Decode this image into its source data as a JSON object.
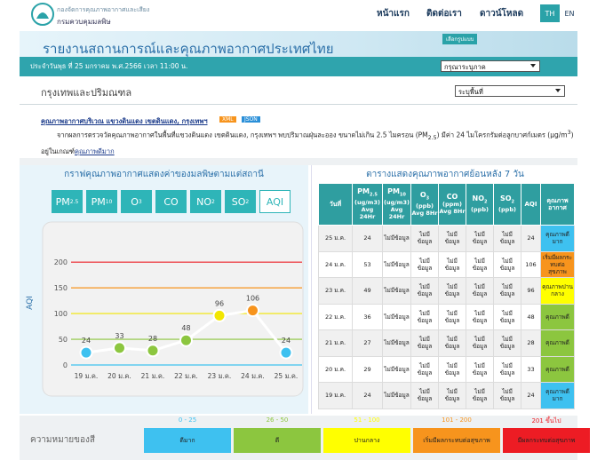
{
  "header": {
    "org_line1": "กองจัดการคุณภาพอากาศและเสียง",
    "org_line2": "กรมควบคุมมลพิษ",
    "nav": [
      "หน้าแรก",
      "ติดต่อเรา",
      "ดาวน์โหลด"
    ],
    "lang": [
      "TH",
      "EN"
    ]
  },
  "banner": {
    "title": "รายงานสถานการณ์และคุณภาพอากาศประเทศไทย",
    "select_label": "เลือกรูปแบบ",
    "select_value": "กรุณาระบุภาค",
    "date": "ประจำวันพุธ ที่ 25 มกราคม พ.ศ.2566 เวลา 11:00 น."
  },
  "region": {
    "title": "กรุงเทพและปริมณฑล",
    "select_value": "ระบุพื้นที่"
  },
  "station": {
    "title": "คุณภาพอากาศบริเวณ แขวงดินแดง เขตดินแดง, กรุงเทพฯ",
    "badges": [
      "XML",
      "JSON"
    ],
    "text_1": "จากผลการตรวจวัดคุณภาพอากาศในพื้นที่แขวงดินแดง เขตดินแดง, กรุงเทพฯ พบปริมาณฝุ่นละออง ขนาดไม่เกิน 2.5 ไมครอน (PM",
    "sub_1": "2.5",
    "text_2": ") มีค่า 24 ไมโครกรัมต่อลูกบาศก์เมตร (µg/m",
    "sup_1": "3",
    "text_3": ") อยู่ในเกณฑ์",
    "link": "คุณภาพดีมาก"
  },
  "chart_panel": {
    "title": "กราฟคุณภาพอากาศแสดงค่าของมลพิษตามแต่สถานี",
    "tabs": [
      {
        "label": "PM",
        "sub": "2.5",
        "active": false
      },
      {
        "label": "PM",
        "sub": "10",
        "active": false
      },
      {
        "label": "O",
        "sub": "3",
        "active": false
      },
      {
        "label": "CO",
        "sub": "",
        "active": false
      },
      {
        "label": "NO",
        "sub": "2",
        "active": false
      },
      {
        "label": "SO",
        "sub": "2",
        "active": false
      },
      {
        "label": "AQI",
        "sub": "",
        "active": true
      }
    ]
  },
  "chart_data": {
    "type": "line",
    "y_label": "AQI",
    "categories": [
      "19 ม.ค.",
      "20 ม.ค.",
      "21 ม.ค.",
      "22 ม.ค.",
      "23 ม.ค.",
      "24 ม.ค.",
      "25 ม.ค."
    ],
    "series": [
      {
        "color": "#ffffff",
        "values": [
          24,
          33,
          28,
          48,
          96,
          106,
          24
        ],
        "point_colors": [
          "#3ec1f0",
          "#8cc63f",
          "#8cc63f",
          "#8cc63f",
          "#f2e600",
          "#f7941d",
          "#3ec1f0"
        ]
      }
    ],
    "ylim": [
      0,
      240
    ],
    "yticks": [
      0,
      50,
      100,
      150,
      200
    ],
    "grid": true,
    "grid_colors": [
      "#3ec1f0",
      "#8cc63f",
      "#f2e600",
      "#f7941d",
      "#ed1c24"
    ]
  },
  "table": {
    "title": "ตารางแสดงคุณภาพอากาศย้อนหลัง 7 วัน",
    "headers": [
      {
        "label": "วันที่"
      },
      {
        "label": "PM",
        "sub": "2.5",
        "unit": "(ug/m3)",
        "avg": "Avg 24Hr"
      },
      {
        "label": "PM",
        "sub": "10",
        "unit": "(ug/m3)",
        "avg": "Avg 24Hr"
      },
      {
        "label": "O",
        "sub": "3",
        "unit": "(ppb)",
        "avg": "Avg 8Hr"
      },
      {
        "label": "CO",
        "unit": "(ppm)",
        "avg": "Avg 8Hr"
      },
      {
        "label": "NO",
        "sub": "2",
        "unit": "(ppb)"
      },
      {
        "label": "SO",
        "sub": "2",
        "unit": "(ppb)"
      },
      {
        "label": "AQI"
      },
      {
        "label": "คุณภาพอากาศ"
      }
    ],
    "rows": [
      [
        "25 ม.ค.",
        24,
        "ไม่มีข้อมูล",
        "ไม่มีข้อมูล",
        "ไม่มีข้อมูล",
        "ไม่มีข้อมูล",
        "ไม่มีข้อมูล",
        24,
        "คุณภาพดีมาก"
      ],
      [
        "24 ม.ค.",
        53,
        "ไม่มีข้อมูล",
        "ไม่มีข้อมูล",
        "ไม่มีข้อมูล",
        "ไม่มีข้อมูล",
        "ไม่มีข้อมูล",
        106,
        "เริ่มมีผลกระทบต่อสุขภาพ"
      ],
      [
        "23 ม.ค.",
        49,
        "ไม่มีข้อมูล",
        "ไม่มีข้อมูล",
        "ไม่มีข้อมูล",
        "ไม่มีข้อมูล",
        "ไม่มีข้อมูล",
        96,
        "คุณภาพปานกลาง"
      ],
      [
        "22 ม.ค.",
        36,
        "ไม่มีข้อมูล",
        "ไม่มีข้อมูล",
        "ไม่มีข้อมูล",
        "ไม่มีข้อมูล",
        "ไม่มีข้อมูล",
        48,
        "คุณภาพดี"
      ],
      [
        "21 ม.ค.",
        27,
        "ไม่มีข้อมูล",
        "ไม่มีข้อมูล",
        "ไม่มีข้อมูล",
        "ไม่มีข้อมูล",
        "ไม่มีข้อมูล",
        28,
        "คุณภาพดี"
      ],
      [
        "20 ม.ค.",
        29,
        "ไม่มีข้อมูล",
        "ไม่มีข้อมูล",
        "ไม่มีข้อมูล",
        "ไม่มีข้อมูล",
        "ไม่มีข้อมูล",
        33,
        "คุณภาพดี"
      ],
      [
        "19 ม.ค.",
        24,
        "ไม่มีข้อมูล",
        "ไม่มีข้อมูล",
        "ไม่มีข้อมูล",
        "ไม่มีข้อมูล",
        "ไม่มีข้อมูล",
        24,
        "คุณภาพดีมาก"
      ]
    ],
    "quality_colors": [
      "#3ec1f0",
      "#f7941d",
      "#ffff00",
      "#8cc63f",
      "#8cc63f",
      "#8cc63f",
      "#3ec1f0"
    ]
  },
  "legend": {
    "title": "ความหมายของสี",
    "items": [
      {
        "range": "0 - 25",
        "label": "ดีมาก",
        "color": "#3ec1f0"
      },
      {
        "range": "26 - 50",
        "label": "ดี",
        "color": "#8cc63f"
      },
      {
        "range": "51 - 100",
        "label": "ปานกลาง",
        "color": "#ffff00"
      },
      {
        "range": "101 - 200",
        "label": "เริ่มมีผลกระทบต่อสุขภาพ",
        "color": "#f7941d"
      },
      {
        "range": "201 ขึ้นไป",
        "label": "มีผลกระทบต่อสุขภาพ",
        "color": "#ed1c24"
      }
    ]
  }
}
